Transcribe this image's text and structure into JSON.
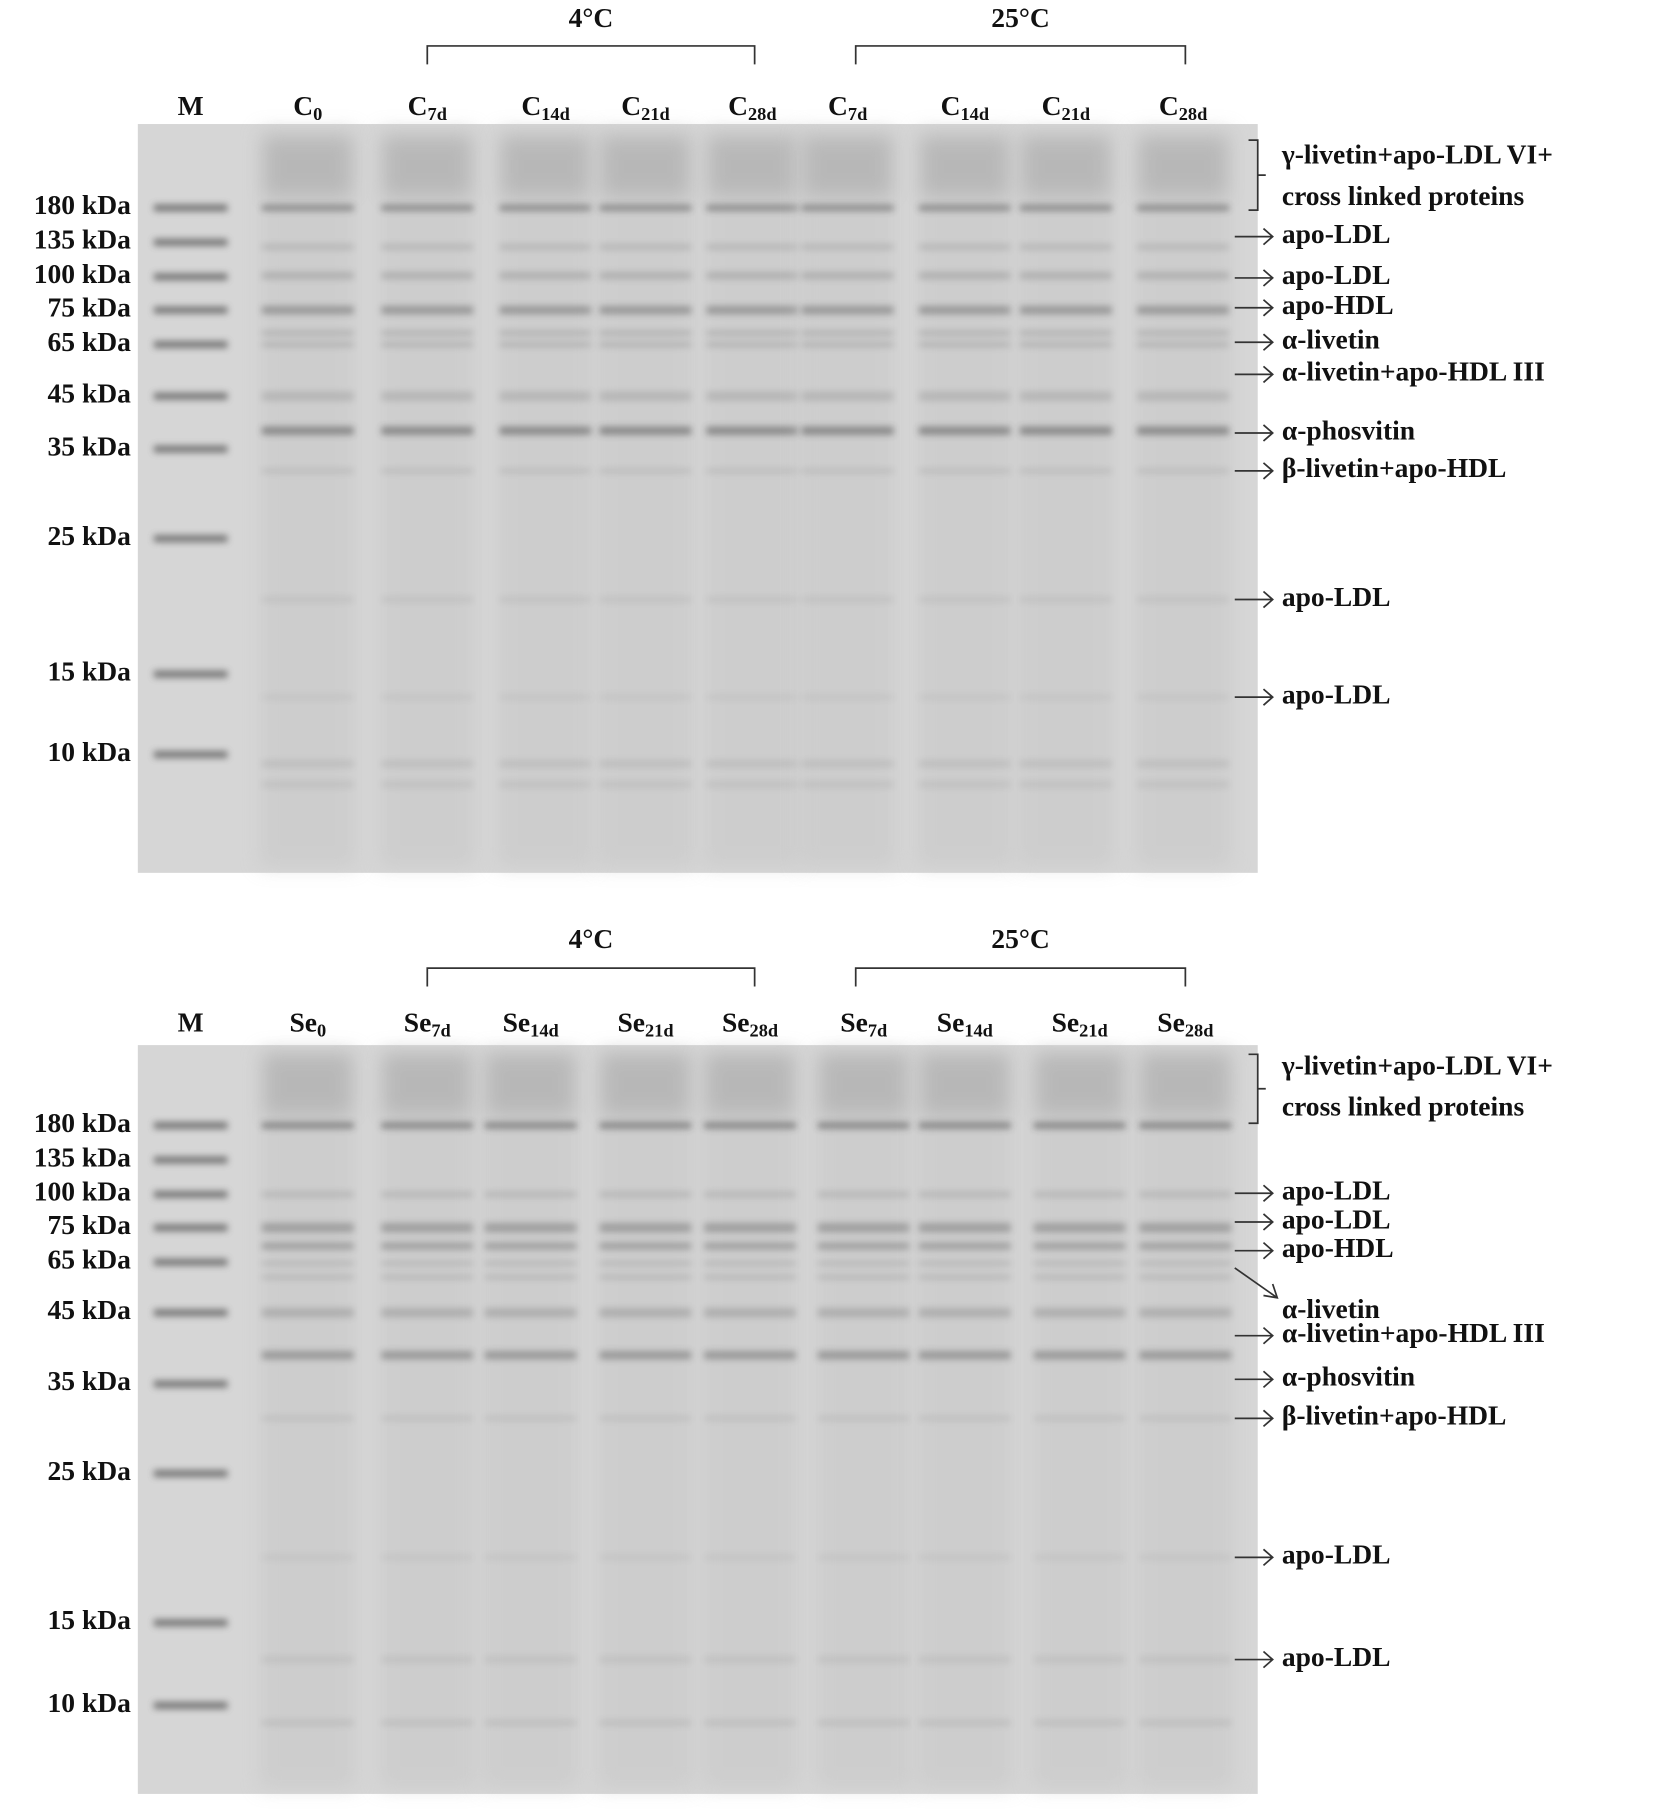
{
  "panels": [
    {
      "groups": [
        "4°C",
        "25°C"
      ],
      "lanes": [
        {
          "base": "M"
        },
        {
          "base": "C",
          "sub": "0"
        },
        {
          "base": "C",
          "sub": "7d"
        },
        {
          "base": "C",
          "sub": "14d"
        },
        {
          "base": "C",
          "sub": "21d"
        },
        {
          "base": "C",
          "sub": "28d"
        },
        {
          "base": "C",
          "sub": "7d"
        },
        {
          "base": "C",
          "sub": "14d"
        },
        {
          "base": "C",
          "sub": "21d"
        },
        {
          "base": "C",
          "sub": "28d"
        }
      ],
      "markers": [
        "180 kDa",
        "135 kDa",
        "100 kDa",
        "75 kDa",
        "65 kDa",
        "45 kDa",
        "35 kDa",
        "25 kDa",
        "15 kDa",
        "10 kDa"
      ],
      "bracket_annotation": [
        "γ-livetin+apo-LDL VI+",
        "cross linked proteins"
      ],
      "annotations": [
        "apo-LDL",
        "apo-LDL",
        "apo-HDL",
        "α-livetin",
        "α-livetin+apo-HDL III",
        "α-phosvitin",
        "β-livetin+apo-HDL",
        "apo-LDL",
        "apo-LDL"
      ]
    },
    {
      "groups": [
        "4°C",
        "25°C"
      ],
      "lanes": [
        {
          "base": "M"
        },
        {
          "base": "Se",
          "sub": "0"
        },
        {
          "base": "Se",
          "sub": "7d"
        },
        {
          "base": "Se",
          "sub": "14d"
        },
        {
          "base": "Se",
          "sub": "21d"
        },
        {
          "base": "Se",
          "sub": "28d"
        },
        {
          "base": "Se",
          "sub": "7d"
        },
        {
          "base": "Se",
          "sub": "14d"
        },
        {
          "base": "Se",
          "sub": "21d"
        },
        {
          "base": "Se",
          "sub": "28d"
        }
      ],
      "markers": [
        "180 kDa",
        "135 kDa",
        "100 kDa",
        "75 kDa",
        "65 kDa",
        "45 kDa",
        "35 kDa",
        "25 kDa",
        "15 kDa",
        "10 kDa"
      ],
      "bracket_annotation": [
        "γ-livetin+apo-LDL VI+",
        "cross linked proteins"
      ],
      "annotations": [
        "apo-LDL",
        "apo-LDL",
        "apo-HDL",
        "α-livetin",
        "α-livetin+apo-HDL III",
        "α-phosvitin",
        "β-livetin+apo-HDL",
        "apo-LDL",
        "apo-LDL"
      ]
    }
  ]
}
